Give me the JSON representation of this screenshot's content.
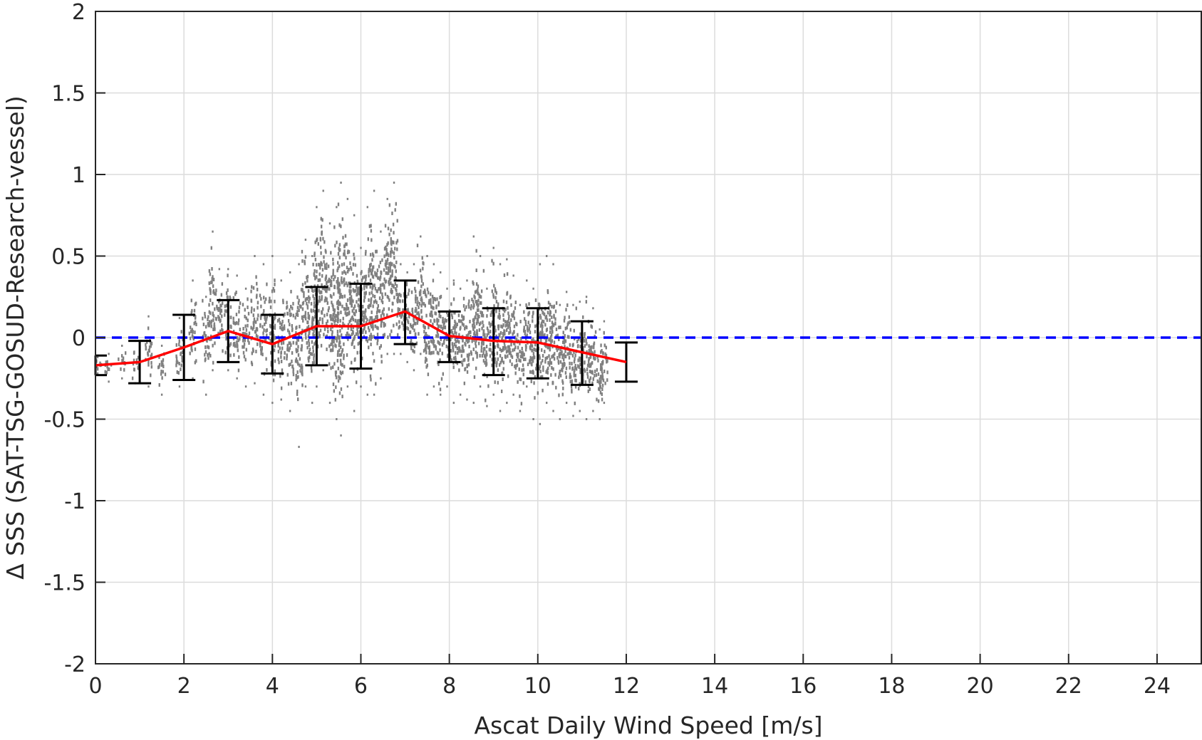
{
  "chart_data": {
    "type": "scatter",
    "xlabel": "Ascat Daily Wind Speed [m/s]",
    "ylabel": "Δ SSS (SAT-TSG-GOSUD-Research-vessel)",
    "xlim": [
      0,
      25
    ],
    "ylim": [
      -2,
      2
    ],
    "xticks": [
      "0",
      "2",
      "4",
      "6",
      "8",
      "10",
      "12",
      "14",
      "16",
      "18",
      "20",
      "22",
      "24"
    ],
    "yticks": [
      "-2",
      "-1.5",
      "-1",
      "-0.5",
      "0",
      "0.5",
      "1",
      "1.5",
      "2"
    ],
    "grid": true,
    "reference_line": {
      "y": 0,
      "color": "#0000ff",
      "style": "dashed"
    },
    "binned": {
      "x": [
        0,
        1,
        2,
        3,
        4,
        5,
        6,
        7,
        8,
        9,
        10,
        11,
        12
      ],
      "mean": [
        -0.17,
        -0.15,
        -0.06,
        0.04,
        -0.04,
        0.07,
        0.07,
        0.16,
        0.01,
        -0.02,
        -0.03,
        -0.09,
        -0.15
      ],
      "lower": [
        -0.23,
        -0.28,
        -0.26,
        -0.15,
        -0.22,
        -0.17,
        -0.19,
        -0.04,
        -0.15,
        -0.23,
        -0.25,
        -0.29,
        -0.27
      ],
      "upper": [
        -0.11,
        -0.02,
        0.14,
        0.23,
        0.14,
        0.31,
        0.33,
        0.35,
        0.16,
        0.18,
        0.18,
        0.1,
        -0.03
      ],
      "line_color": "#ff0000",
      "errorbar_color": "#000000"
    },
    "scatter_columns": {
      "color": "#808080",
      "columns": [
        [
          0.05,
          -0.22,
          -0.12
        ],
        [
          0.3,
          -0.27,
          -0.1
        ],
        [
          0.6,
          -0.25,
          -0.05
        ],
        [
          0.9,
          -0.28,
          -0.02
        ],
        [
          1.2,
          -0.3,
          0.13
        ],
        [
          1.5,
          -0.35,
          -0.05
        ],
        [
          1.9,
          -0.3,
          0.12
        ],
        [
          2.2,
          -0.25,
          0.35
        ],
        [
          2.5,
          -0.35,
          0.25
        ],
        [
          2.65,
          -0.2,
          0.65
        ],
        [
          2.8,
          -0.15,
          0.42
        ],
        [
          3.0,
          -0.2,
          0.42
        ],
        [
          3.2,
          -0.25,
          0.38
        ],
        [
          3.4,
          -0.3,
          0.3
        ],
        [
          3.6,
          -0.28,
          0.5
        ],
        [
          3.8,
          -0.35,
          0.45
        ],
        [
          4.0,
          -0.4,
          0.5
        ],
        [
          4.2,
          -0.38,
          0.35
        ],
        [
          4.4,
          -0.45,
          0.4
        ],
        [
          4.6,
          -0.67,
          0.45
        ],
        [
          4.75,
          -0.3,
          0.6
        ],
        [
          4.9,
          -0.4,
          0.5
        ],
        [
          5.0,
          -0.3,
          0.8
        ],
        [
          5.15,
          -0.2,
          0.9
        ],
        [
          5.3,
          -0.4,
          0.7
        ],
        [
          5.45,
          -0.5,
          0.8
        ],
        [
          5.55,
          -0.6,
          0.95
        ],
        [
          5.7,
          -0.3,
          0.85
        ],
        [
          5.85,
          -0.45,
          0.75
        ],
        [
          6.0,
          -0.3,
          0.55
        ],
        [
          6.15,
          -0.35,
          0.8
        ],
        [
          6.3,
          -0.35,
          0.9
        ],
        [
          6.45,
          -0.25,
          0.65
        ],
        [
          6.6,
          -0.1,
          0.85
        ],
        [
          6.75,
          -0.1,
          0.95
        ],
        [
          6.9,
          -0.1,
          0.45
        ],
        [
          7.05,
          -0.15,
          0.4
        ],
        [
          7.2,
          -0.2,
          0.45
        ],
        [
          7.35,
          -0.1,
          0.62
        ],
        [
          7.5,
          -0.35,
          0.5
        ],
        [
          7.65,
          -0.3,
          0.45
        ],
        [
          7.8,
          -0.35,
          0.4
        ],
        [
          7.95,
          -0.3,
          0.3
        ],
        [
          8.1,
          -0.4,
          0.35
        ],
        [
          8.25,
          -0.35,
          0.3
        ],
        [
          8.4,
          -0.38,
          0.35
        ],
        [
          8.55,
          -0.4,
          0.62
        ],
        [
          8.7,
          -0.3,
          0.5
        ],
        [
          8.85,
          -0.42,
          0.3
        ],
        [
          9.0,
          -0.35,
          0.55
        ],
        [
          9.15,
          -0.45,
          0.45
        ],
        [
          9.3,
          -0.4,
          0.48
        ],
        [
          9.45,
          -0.35,
          0.38
        ],
        [
          9.6,
          -0.45,
          0.2
        ],
        [
          9.75,
          -0.3,
          0.35
        ],
        [
          9.9,
          -0.5,
          0.3
        ],
        [
          10.05,
          -0.53,
          0.45
        ],
        [
          10.2,
          -0.4,
          0.5
        ],
        [
          10.35,
          -0.45,
          0.45
        ],
        [
          10.5,
          -0.5,
          0.2
        ],
        [
          10.65,
          -0.4,
          0.28
        ],
        [
          10.8,
          -0.48,
          0.2
        ],
        [
          10.95,
          -0.45,
          0.22
        ],
        [
          11.1,
          -0.5,
          0.25
        ],
        [
          11.25,
          -0.45,
          0.18
        ],
        [
          11.4,
          -0.5,
          0.05
        ],
        [
          11.5,
          -0.4,
          0.1
        ]
      ]
    }
  }
}
